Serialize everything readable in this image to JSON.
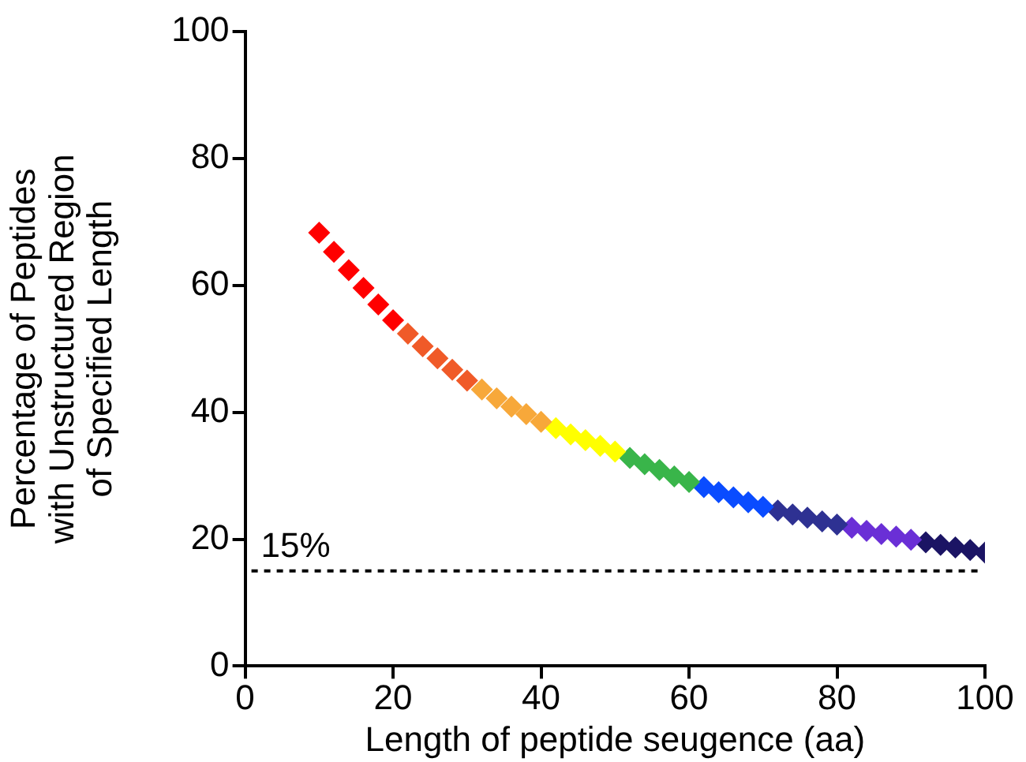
{
  "chart_data": {
    "type": "scatter",
    "xlabel": "Length of peptide seugence (aa)",
    "ylabel": "Percentage of Peptides\nwith Unstructured Region\nof Specified Length",
    "xlim": [
      0,
      100
    ],
    "xticks": [
      0,
      20,
      40,
      60,
      80,
      100
    ],
    "ylim": [
      0,
      100
    ],
    "yticks": [
      0,
      20,
      40,
      60,
      80,
      100
    ],
    "grid": false,
    "legend": false,
    "marker": "diamond",
    "ref_lines": [
      {
        "axis": "y",
        "value": 15,
        "label": "15%",
        "color": "#000000",
        "line_style": "dashed"
      }
    ],
    "series": [
      {
        "color": "#ff0000",
        "x": [
          10,
          12,
          14,
          16,
          18,
          20
        ],
        "values": [
          68.3,
          65.3,
          62.4,
          59.6,
          57,
          54.5
        ]
      },
      {
        "color": "#f05a28",
        "x": [
          22,
          24,
          26,
          28,
          30
        ],
        "values": [
          52.4,
          50.4,
          48.5,
          46.7,
          45
        ]
      },
      {
        "color": "#f7a83a",
        "x": [
          32,
          34,
          36,
          38,
          40
        ],
        "values": [
          43.6,
          42.2,
          40.9,
          39.7,
          38.5
        ]
      },
      {
        "color": "#ffff00",
        "x": [
          42,
          44,
          46,
          48,
          50
        ],
        "values": [
          37.5,
          36.5,
          35.6,
          34.7,
          33.8
        ]
      },
      {
        "color": "#39b54a",
        "x": [
          52,
          54,
          56,
          58,
          60
        ],
        "values": [
          32.8,
          31.8,
          30.9,
          29.9,
          29
        ]
      },
      {
        "color": "#0a4cff",
        "x": [
          62,
          64,
          66,
          68,
          70
        ],
        "values": [
          28.2,
          27.4,
          26.6,
          25.8,
          25.1
        ]
      },
      {
        "color": "#2e3192",
        "x": [
          72,
          74,
          76,
          78,
          80
        ],
        "values": [
          24.5,
          23.9,
          23.4,
          22.8,
          22.3
        ]
      },
      {
        "color": "#6a2fd6",
        "x": [
          82,
          84,
          86,
          88,
          90
        ],
        "values": [
          21.8,
          21.3,
          20.8,
          20.4,
          19.9
        ]
      },
      {
        "color": "#1b1464",
        "x": [
          92,
          94,
          96,
          98,
          100
        ],
        "values": [
          19.5,
          19.1,
          18.7,
          18.3,
          17.9
        ]
      }
    ]
  }
}
